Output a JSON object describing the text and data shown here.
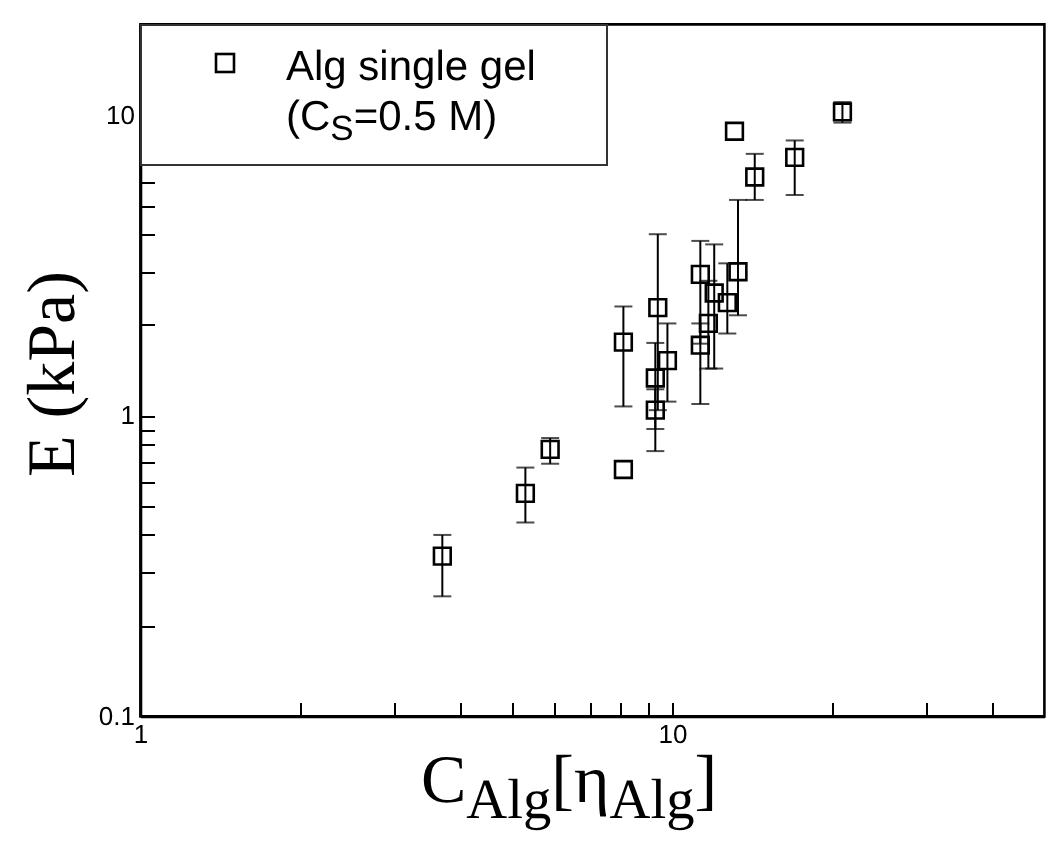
{
  "chart_data": {
    "type": "scatter",
    "xlabel": "C$_{Alg}$[η$_{Alg}$]",
    "ylabel": "E (kPa)",
    "log": "xy",
    "marker": "square",
    "legend": "top left",
    "grid": false,
    "xlim": [
      1,
      50
    ],
    "ylim": [
      0.1,
      20
    ],
    "xticks": [
      1,
      {
        "value": 2,
        "label": null
      },
      {
        "value": 3,
        "label": null
      },
      {
        "value": 4,
        "label": null
      },
      {
        "value": 5,
        "label": null
      },
      {
        "value": 6,
        "label": null
      },
      {
        "value": 7,
        "label": null
      },
      {
        "value": 8,
        "label": null
      },
      {
        "value": 9,
        "label": null
      },
      10,
      {
        "value": 20,
        "label": null
      },
      {
        "value": 30,
        "label": null
      },
      {
        "value": 40,
        "label": null
      }
    ],
    "yticks": [
      0.1,
      {
        "value": 0.2,
        "label": null
      },
      {
        "value": 0.3,
        "label": null
      },
      {
        "value": 0.4,
        "label": null
      },
      {
        "value": 0.5,
        "label": null
      },
      {
        "value": 0.6,
        "label": null
      },
      {
        "value": 0.7,
        "label": null
      },
      {
        "value": 0.8,
        "label": null
      },
      {
        "value": 0.9,
        "label": null
      },
      1,
      {
        "value": 2,
        "label": null
      },
      {
        "value": 3,
        "label": null
      },
      {
        "value": 4,
        "label": null
      },
      {
        "value": 5,
        "label": null
      },
      {
        "value": 6,
        "label": null
      },
      {
        "value": 7,
        "label": null
      },
      {
        "value": 8,
        "label": null
      },
      {
        "value": 9,
        "label": null
      },
      10
    ],
    "x": [
      3.7,
      5.3,
      5.9,
      8.1,
      8.1,
      9.3,
      9.3,
      9.4,
      9.8,
      11.3,
      11.3,
      11.7,
      12.0,
      12.7,
      13.3,
      13.1,
      14.3,
      17.0,
      20.9
    ],
    "series": [
      {
        "name": "Alg single gel\n(C$_{S}$=0.5 M)",
        "color": "#000000",
        "values": [
          0.34,
          0.55,
          0.77,
          0.66,
          1.75,
          1.04,
          1.33,
          2.28,
          1.52,
          1.71,
          2.94,
          2.02,
          2.55,
          2.37,
          3.0,
          8.8,
          6.2,
          7.2,
          10.2
        ],
        "errors": [
          [
            0.25,
            0.4
          ],
          [
            0.44,
            0.67
          ],
          [
            0.69,
            0.84
          ],
          null,
          [
            1.07,
            2.3
          ],
          [
            0.9,
            1.22
          ],
          [
            0.76,
            1.74
          ],
          [
            1.04,
            4.0
          ],
          [
            1.11,
            2.02
          ],
          [
            1.09,
            2.02
          ],
          [
            1.73,
            3.8
          ],
          [
            1.43,
            2.8
          ],
          [
            1.43,
            3.7
          ],
          [
            1.87,
            3.2
          ],
          [
            2.15,
            5.2
          ],
          null,
          [
            5.2,
            7.4
          ],
          [
            5.4,
            8.2
          ],
          [
            9.4,
            11.0
          ]
        ]
      }
    ]
  }
}
